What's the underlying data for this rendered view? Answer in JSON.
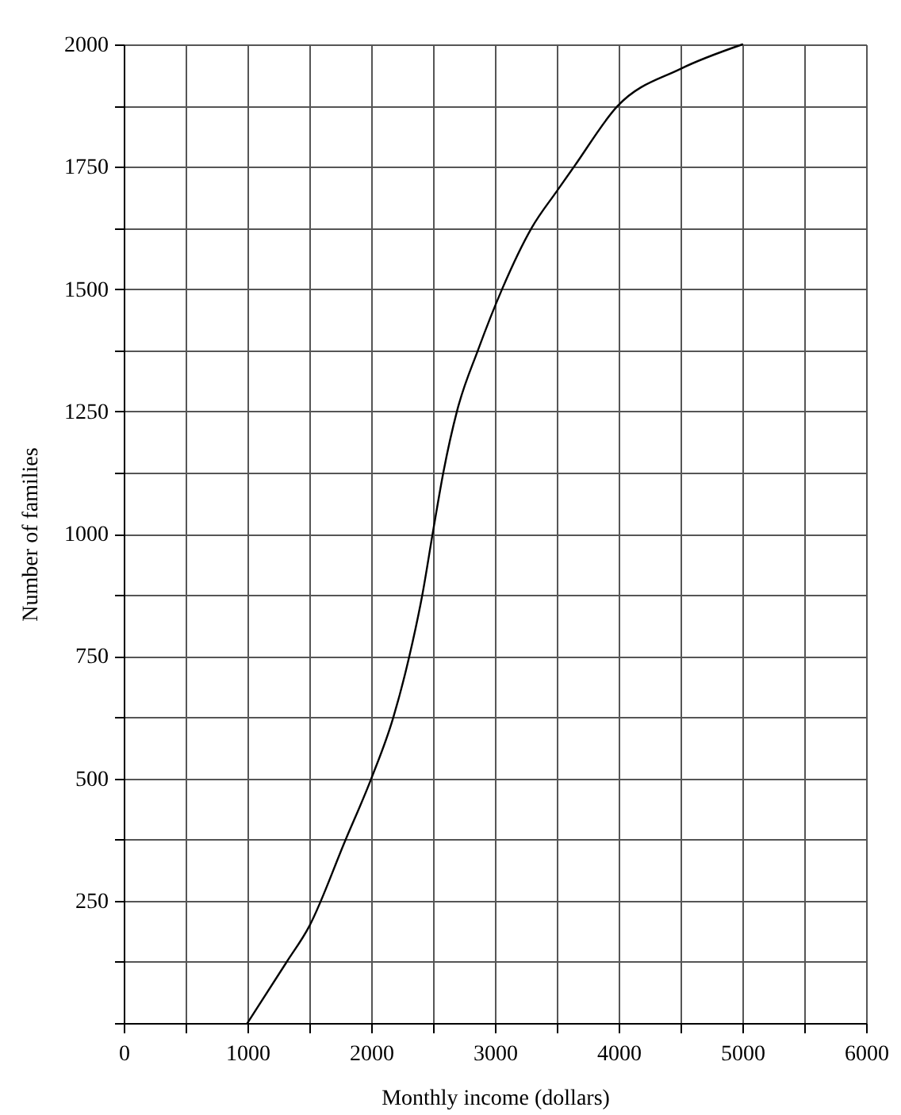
{
  "chart_data": {
    "type": "line",
    "xlabel": "Monthly income (dollars)",
    "ylabel": "Number of families",
    "x": [
      1000,
      1315,
      1500,
      1789,
      2000,
      2177,
      2306,
      2414,
      2500,
      2586,
      2694,
      2866,
      3060,
      3297,
      3500,
      3642,
      3987,
      4500,
      5000
    ],
    "series": [
      {
        "color": "#000000",
        "values": [
          0,
          124,
          198,
          372,
          499,
          623,
          747,
          876,
          1005,
          1129,
          1251,
          1377,
          1501,
          1625,
          1700,
          1751,
          1873,
          1950,
          2000
        ]
      }
    ],
    "xlim": [
      0,
      6000
    ],
    "ylim": [
      0,
      2000
    ],
    "xticks": [
      {
        "value": 0,
        "label": "0"
      },
      {
        "value": 500,
        "label": null
      },
      1000,
      {
        "value": 1500,
        "label": null
      },
      2000,
      {
        "value": 2500,
        "label": null
      },
      3000,
      {
        "value": 3500,
        "label": null
      },
      4000,
      {
        "value": 4500,
        "label": null
      },
      5000,
      {
        "value": 5500,
        "label": null
      },
      6000
    ],
    "yticks": [
      {
        "value": 0,
        "label": null
      },
      {
        "value": 125,
        "label": null
      },
      250,
      {
        "value": 375,
        "label": null
      },
      500,
      {
        "value": 625,
        "label": null
      },
      750,
      {
        "value": 875,
        "label": null
      },
      1000,
      {
        "value": 1125,
        "label": null
      },
      1250,
      {
        "value": 1375,
        "label": null
      },
      1500,
      {
        "value": 1625,
        "label": null
      },
      1750,
      {
        "value": 1875,
        "label": null
      },
      2000
    ],
    "grid": true,
    "marker": "none",
    "line_style": "solid",
    "legend": false
  }
}
